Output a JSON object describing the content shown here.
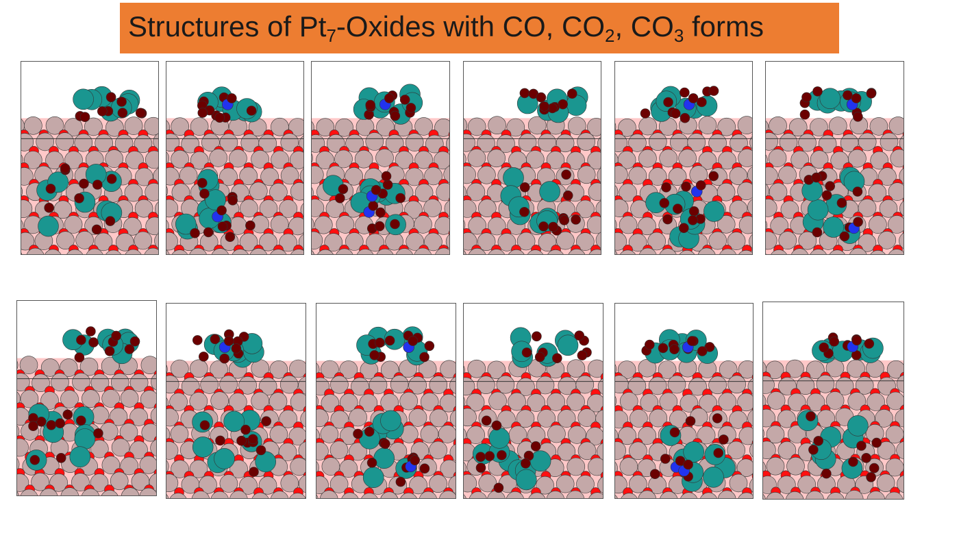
{
  "slide": {
    "title": {
      "prefix": "Structures of Pt",
      "sub1": "7",
      "mid1": "-Oxides with CO, CO",
      "sub2": "2",
      "mid2": ", CO",
      "sub3": "3",
      "suffix": " forms"
    }
  },
  "colors": {
    "banner": "#ED7D31",
    "pt_substrate_atom": "#C4A8A8",
    "pt_cluster_atom": "#1A9690",
    "oxide_oxygen": "#FF1010",
    "adsorbate_oxygen": "#6B0000",
    "carbon": "#2233EE",
    "slab_background": "#FFC8C8"
  },
  "panels": [
    {
      "row": 1,
      "index": 1,
      "seed": 11,
      "carbons": 0
    },
    {
      "row": 1,
      "index": 2,
      "seed": 23,
      "carbons": 2
    },
    {
      "row": 1,
      "index": 3,
      "seed": 37,
      "carbons": 3
    },
    {
      "row": 1,
      "index": 4,
      "seed": 41,
      "carbons": 0
    },
    {
      "row": 1,
      "index": 5,
      "seed": 53,
      "carbons": 2
    },
    {
      "row": 1,
      "index": 6,
      "seed": 67,
      "carbons": 2
    },
    {
      "row": 2,
      "index": 1,
      "seed": 71,
      "carbons": 0
    },
    {
      "row": 2,
      "index": 2,
      "seed": 83,
      "carbons": 1
    },
    {
      "row": 2,
      "index": 3,
      "seed": 97,
      "carbons": 2
    },
    {
      "row": 2,
      "index": 4,
      "seed": 101,
      "carbons": 0
    },
    {
      "row": 2,
      "index": 5,
      "seed": 113,
      "carbons": 3
    },
    {
      "row": 2,
      "index": 6,
      "seed": 127,
      "carbons": 1
    }
  ]
}
